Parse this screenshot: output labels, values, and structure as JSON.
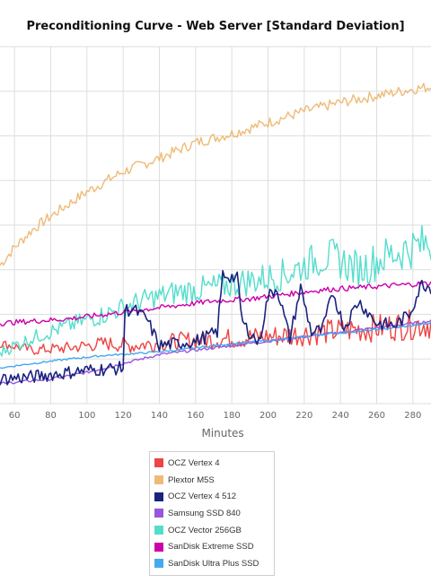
{
  "chart_data": {
    "type": "line",
    "title": "Preconditioning Curve - Web Server [Standard Deviation]",
    "xlabel": "Minutes",
    "ylabel": "",
    "x_ticks": [
      60,
      80,
      100,
      120,
      140,
      160,
      180,
      200,
      220,
      240,
      260,
      280
    ],
    "xlim": [
      52,
      290
    ],
    "ylim": [
      0,
      8
    ],
    "grid": true,
    "legend_position": "bottom",
    "series": [
      {
        "name": "OCZ Vertex 4",
        "color": "#ee4444",
        "points": [
          [
            52,
            1.35
          ],
          [
            70,
            1.2
          ],
          [
            90,
            1.25
          ],
          [
            110,
            1.35
          ],
          [
            125,
            1.3
          ],
          [
            150,
            1.4
          ],
          [
            175,
            1.45
          ],
          [
            200,
            1.5
          ],
          [
            230,
            1.6
          ],
          [
            260,
            1.7
          ],
          [
            290,
            1.8
          ]
        ]
      },
      {
        "name": "Plextor M5S",
        "color": "#eebb77",
        "points": [
          [
            52,
            3.1
          ],
          [
            60,
            3.5
          ],
          [
            70,
            3.9
          ],
          [
            80,
            4.2
          ],
          [
            100,
            4.75
          ],
          [
            120,
            5.2
          ],
          [
            140,
            5.5
          ],
          [
            160,
            5.85
          ],
          [
            180,
            6.05
          ],
          [
            200,
            6.3
          ],
          [
            220,
            6.55
          ],
          [
            240,
            6.75
          ],
          [
            260,
            6.9
          ],
          [
            280,
            7.05
          ],
          [
            290,
            7.1
          ]
        ]
      },
      {
        "name": "OCZ Vertex 4 512",
        "color": "#1a237e",
        "points": [
          [
            52,
            0.55
          ],
          [
            70,
            0.6
          ],
          [
            100,
            0.75
          ],
          [
            120,
            0.8
          ],
          [
            121,
            2.1
          ],
          [
            126,
            2.1
          ],
          [
            133,
            1.9
          ],
          [
            140,
            1.3
          ],
          [
            160,
            1.4
          ],
          [
            172,
            1.6
          ],
          [
            175,
            2.9
          ],
          [
            183,
            2.8
          ],
          [
            186,
            1.8
          ],
          [
            195,
            1.35
          ],
          [
            200,
            2.4
          ],
          [
            205,
            2.6
          ],
          [
            212,
            1.45
          ],
          [
            218,
            2.6
          ],
          [
            224,
            1.6
          ],
          [
            230,
            1.65
          ],
          [
            236,
            2.5
          ],
          [
            242,
            1.7
          ],
          [
            250,
            2.3
          ],
          [
            260,
            1.8
          ],
          [
            270,
            1.75
          ],
          [
            278,
            2.0
          ],
          [
            285,
            2.7
          ],
          [
            290,
            2.6
          ]
        ]
      },
      {
        "name": "Samsung SSD 840",
        "color": "#9955dd",
        "points": [
          [
            52,
            0.45
          ],
          [
            80,
            0.55
          ],
          [
            100,
            0.7
          ],
          [
            120,
            0.9
          ],
          [
            140,
            1.1
          ],
          [
            160,
            1.2
          ],
          [
            180,
            1.3
          ],
          [
            200,
            1.4
          ],
          [
            220,
            1.5
          ],
          [
            240,
            1.6
          ],
          [
            260,
            1.7
          ],
          [
            290,
            1.85
          ]
        ]
      },
      {
        "name": "OCZ Vector 256GB",
        "color": "#55ddcc",
        "points": [
          [
            52,
            1.15
          ],
          [
            60,
            1.3
          ],
          [
            75,
            1.55
          ],
          [
            90,
            1.75
          ],
          [
            110,
            2.0
          ],
          [
            130,
            2.3
          ],
          [
            150,
            2.5
          ],
          [
            170,
            2.6
          ],
          [
            190,
            2.75
          ],
          [
            210,
            2.9
          ],
          [
            225,
            3.2
          ],
          [
            235,
            3.3
          ],
          [
            250,
            3.0
          ],
          [
            265,
            3.3
          ],
          [
            280,
            3.5
          ],
          [
            290,
            3.6
          ]
        ]
      },
      {
        "name": "SanDisk Extreme SSD",
        "color": "#cc00aa",
        "points": [
          [
            52,
            1.8
          ],
          [
            70,
            1.85
          ],
          [
            90,
            1.9
          ],
          [
            110,
            2.0
          ],
          [
            130,
            2.1
          ],
          [
            150,
            2.2
          ],
          [
            170,
            2.3
          ],
          [
            190,
            2.35
          ],
          [
            210,
            2.45
          ],
          [
            230,
            2.55
          ],
          [
            250,
            2.6
          ],
          [
            270,
            2.65
          ],
          [
            290,
            2.7
          ]
        ]
      },
      {
        "name": "SanDisk Ultra Plus SSD",
        "color": "#44aaee",
        "points": [
          [
            52,
            0.8
          ],
          [
            70,
            0.9
          ],
          [
            90,
            1.0
          ],
          [
            110,
            1.08
          ],
          [
            130,
            1.13
          ],
          [
            150,
            1.2
          ],
          [
            170,
            1.3
          ],
          [
            190,
            1.38
          ],
          [
            210,
            1.45
          ],
          [
            230,
            1.55
          ],
          [
            250,
            1.62
          ],
          [
            270,
            1.7
          ],
          [
            290,
            1.8
          ]
        ]
      }
    ]
  }
}
